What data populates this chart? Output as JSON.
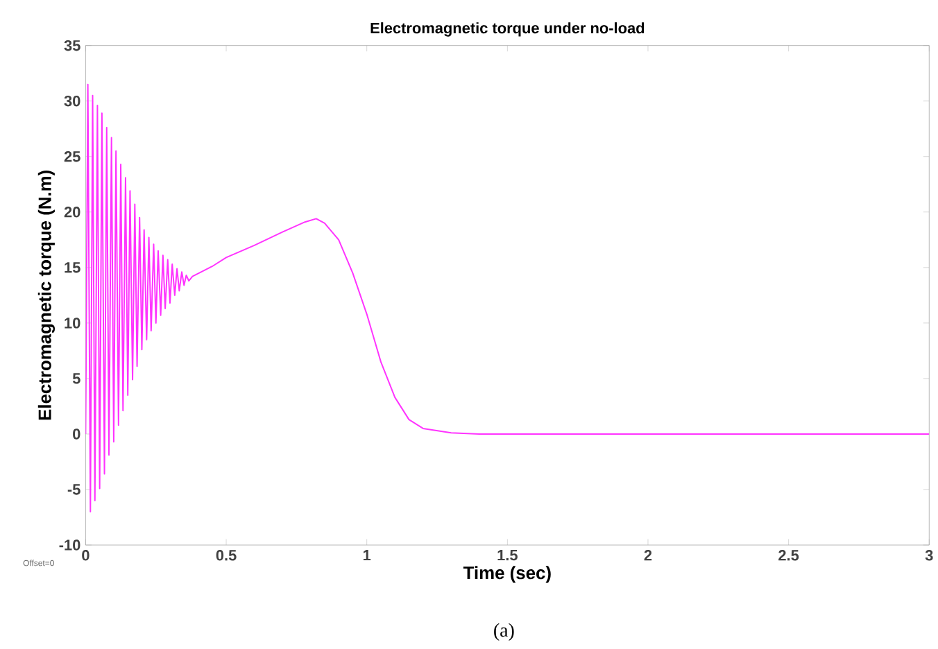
{
  "chart_data": {
    "type": "line",
    "title": "Electromagnetic torque under no-load",
    "xlabel": "Time (sec)",
    "ylabel": "Electromagnetic torque (N.m)",
    "annotations": [
      "Offset=0",
      "(a)"
    ],
    "xlim": [
      0,
      3
    ],
    "ylim": [
      -10,
      35
    ],
    "xticks": [
      0,
      0.5,
      1,
      1.5,
      2,
      2.5,
      3
    ],
    "yticks": [
      -10,
      -5,
      0,
      5,
      10,
      15,
      20,
      25,
      30,
      35
    ],
    "grid": false,
    "series": [
      {
        "color": "#ff33ff",
        "x": [
          0,
          0.008,
          0.017,
          0.025,
          0.033,
          0.042,
          0.05,
          0.058,
          0.067,
          0.075,
          0.083,
          0.092,
          0.1,
          0.108,
          0.117,
          0.125,
          0.133,
          0.142,
          0.15,
          0.158,
          0.167,
          0.175,
          0.183,
          0.192,
          0.2,
          0.208,
          0.217,
          0.225,
          0.233,
          0.242,
          0.25,
          0.258,
          0.267,
          0.275,
          0.283,
          0.292,
          0.3,
          0.308,
          0.317,
          0.325,
          0.333,
          0.342,
          0.35,
          0.358,
          0.367,
          0.38,
          0.45,
          0.5,
          0.6,
          0.7,
          0.78,
          0.82,
          0.85,
          0.9,
          0.95,
          1.0,
          1.05,
          1.1,
          1.15,
          1.2,
          1.3,
          1.4,
          3
        ],
        "values": [
          0,
          31.5,
          -7.0,
          30.5,
          -6.0,
          29.6,
          -4.9,
          28.9,
          -3.6,
          27.6,
          -1.9,
          26.7,
          -0.7,
          25.5,
          0.8,
          24.3,
          2.1,
          23.1,
          3.5,
          21.9,
          4.9,
          20.7,
          6.1,
          19.5,
          7.6,
          18.4,
          8.5,
          17.7,
          9.3,
          17.1,
          10.0,
          16.5,
          10.7,
          16.1,
          11.3,
          15.7,
          11.8,
          15.3,
          12.5,
          14.9,
          12.9,
          14.6,
          13.4,
          14.3,
          13.8,
          14.2,
          15.1,
          15.9,
          17.0,
          18.2,
          19.1,
          19.4,
          19.0,
          17.5,
          14.5,
          10.8,
          6.5,
          3.3,
          1.3,
          0.5,
          0.1,
          0,
          0
        ]
      }
    ]
  }
}
